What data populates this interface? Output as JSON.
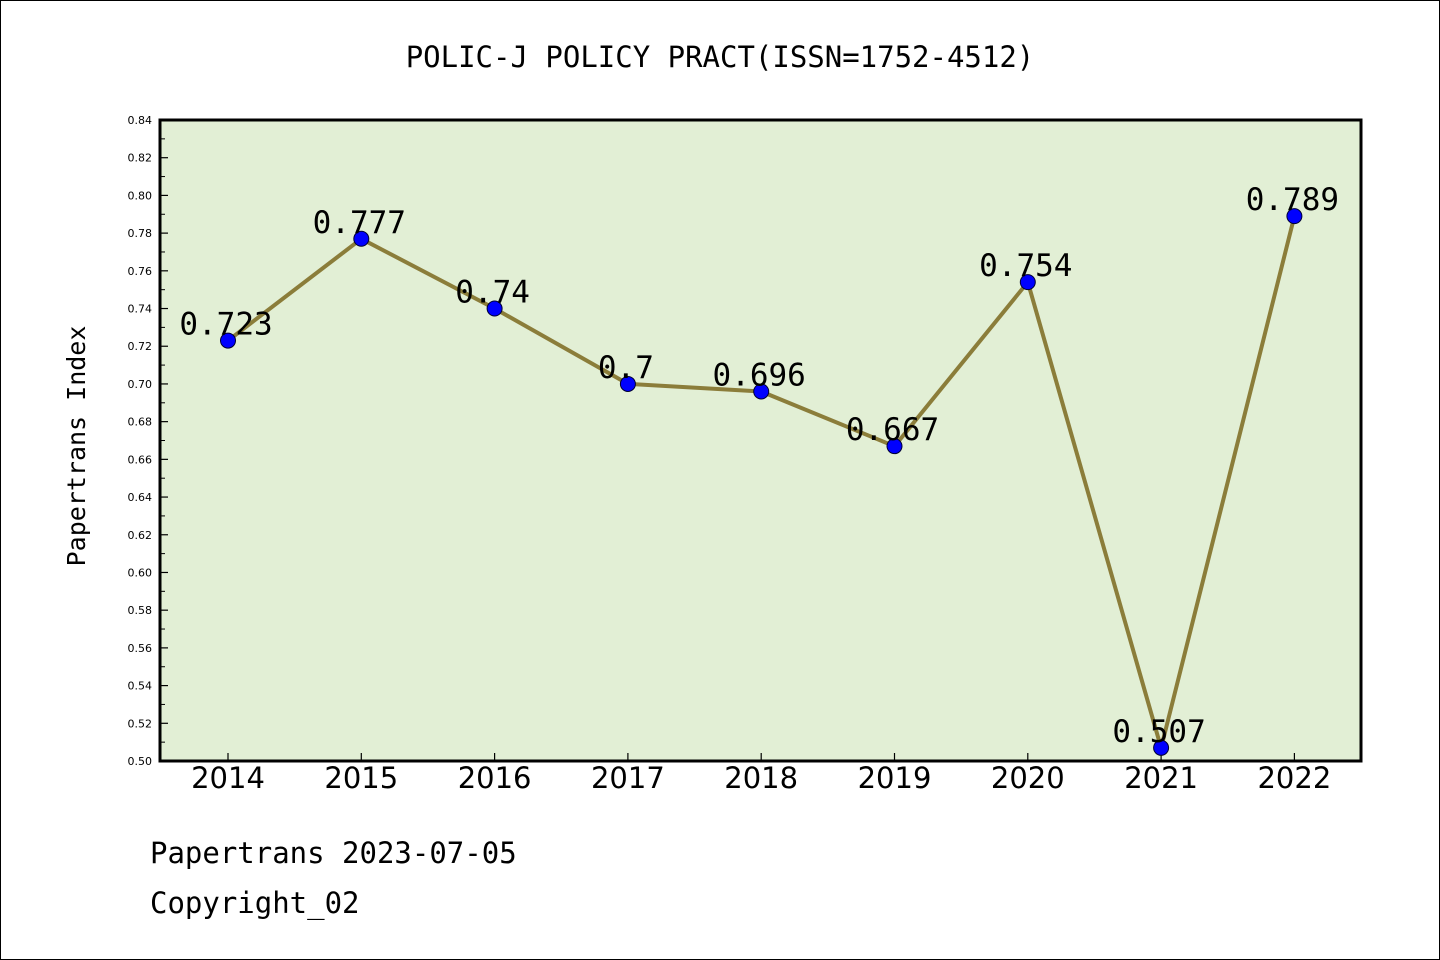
{
  "chart_data": {
    "type": "line",
    "title": "POLIC-J POLICY PRACT(ISSN=1752-4512)",
    "xlabel": "",
    "ylabel": "Papertrans Index",
    "categories": [
      "2014",
      "2015",
      "2016",
      "2017",
      "2018",
      "2019",
      "2020",
      "2021",
      "2022"
    ],
    "series": [
      {
        "values": [
          0.723,
          0.777,
          0.74,
          0.7,
          0.696,
          0.667,
          0.754,
          0.507,
          0.789
        ],
        "data_labels": [
          "0.723",
          "0.777",
          "0.74",
          "0.7",
          "0.696",
          "0.667",
          "0.754",
          "0.507",
          "0.789"
        ]
      }
    ],
    "ylim": [
      0.5,
      0.84
    ],
    "yticks": [
      "0.50",
      "0.52",
      "0.54",
      "0.56",
      "0.58",
      "0.60",
      "0.62",
      "0.64",
      "0.66",
      "0.68",
      "0.70",
      "0.72",
      "0.74",
      "0.76",
      "0.78",
      "0.80",
      "0.82",
      "0.84"
    ],
    "grid": false,
    "legend": "none",
    "colors": {
      "plot_background": "#e2efd5",
      "line": "#8b7d3a",
      "marker": "#0000ff"
    }
  },
  "footer": {
    "date_text": "Papertrans 2023-07-05",
    "copyright_text": "Copyright_02"
  }
}
